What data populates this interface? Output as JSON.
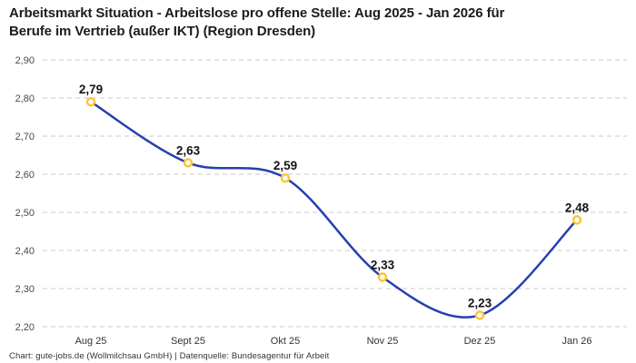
{
  "title": {
    "lines": [
      "Arbeitsmarkt Situation - Arbeitslose pro offene Stelle: Aug 2025 - Jan 2026 für",
      "Berufe im Vertrieb (außer IKT) (Region Dresden)"
    ]
  },
  "chart_data": {
    "type": "line",
    "title": "Arbeitsmarkt Situation - Arbeitslose pro offene Stelle: Aug 2025 - Jan 2026 für Berufe im Vertrieb (außer IKT) (Region Dresden)",
    "categories": [
      "Aug 25",
      "Sept 25",
      "Okt 25",
      "Nov 25",
      "Dez 25",
      "Jan 26"
    ],
    "values": [
      2.79,
      2.63,
      2.59,
      2.33,
      2.23,
      2.48
    ],
    "value_labels": [
      "2,79",
      "2,63",
      "2,59",
      "2,33",
      "2,23",
      "2,48"
    ],
    "y_ticks": [
      {
        "value": 2.9,
        "label": "2,90"
      },
      {
        "value": 2.8,
        "label": "2,80"
      },
      {
        "value": 2.7,
        "label": "2,70"
      },
      {
        "value": 2.6,
        "label": "2,60"
      },
      {
        "value": 2.5,
        "label": "2,50"
      },
      {
        "value": 2.4,
        "label": "2,40"
      },
      {
        "value": 2.3,
        "label": "2,30"
      },
      {
        "value": 2.2,
        "label": "2,20"
      }
    ],
    "ylim": [
      2.2,
      2.9
    ],
    "xlabel": "",
    "ylabel": "",
    "grid": "horizontal-dashed",
    "legend": "none",
    "interpolation": "smooth",
    "decimal_separator": ",",
    "colors": {
      "line": "#2440b0",
      "marker_stroke": "#fcc636",
      "marker_fill": "#ffffff",
      "grid": "#c9c9c9",
      "value_label": "#141414",
      "tick_label": "#4a4a4a",
      "title": "#1c1c1c",
      "background": "#ffffff"
    }
  },
  "footer": {
    "text": "Chart: gute-jobs.de (Wollmilchsau GmbH) | Datenquelle: Bundesagentur für Arbeit"
  }
}
